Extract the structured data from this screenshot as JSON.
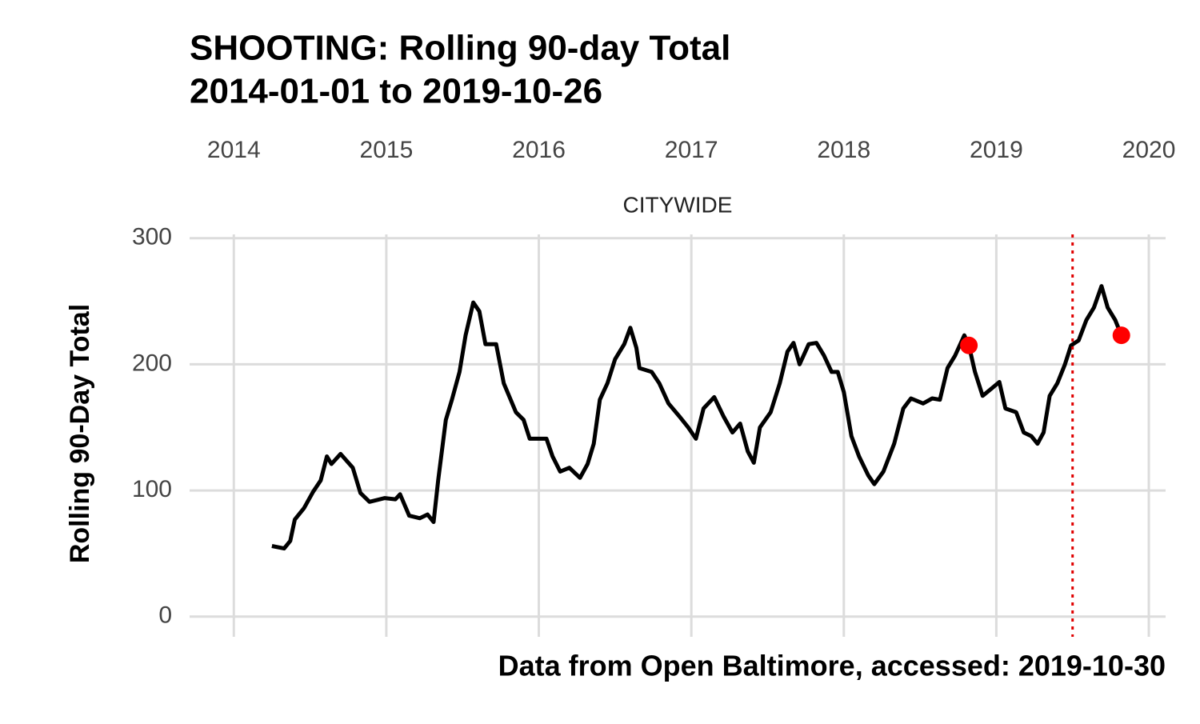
{
  "chart_data": {
    "type": "line",
    "title": "SHOOTING: Rolling 90-day Total",
    "subtitle": "2014-01-01 to 2019-10-26",
    "facet_label": "CITYWIDE",
    "y_label": "Rolling 90-Day Total",
    "caption": "Data from Open Baltimore, accessed: 2019-10-30",
    "x": [
      2014.25,
      2014.33,
      2014.37,
      2014.4,
      2014.46,
      2014.52,
      2014.57,
      2014.61,
      2014.64,
      2014.7,
      2014.78,
      2014.83,
      2014.89,
      2014.99,
      2015.06,
      2015.09,
      2015.15,
      2015.22,
      2015.27,
      2015.31,
      2015.34,
      2015.39,
      2015.43,
      2015.48,
      2015.52,
      2015.57,
      2015.61,
      2015.65,
      2015.72,
      2015.77,
      2015.85,
      2015.9,
      2015.94,
      2016.01,
      2016.05,
      2016.09,
      2016.14,
      2016.2,
      2016.27,
      2016.32,
      2016.36,
      2016.4,
      2016.45,
      2016.5,
      2016.56,
      2016.6,
      2016.64,
      2016.66,
      2016.74,
      2016.79,
      2016.85,
      2016.92,
      2016.98,
      2017.03,
      2017.08,
      2017.15,
      2017.21,
      2017.27,
      2017.32,
      2017.37,
      2017.41,
      2017.45,
      2017.52,
      2017.58,
      2017.63,
      2017.67,
      2017.71,
      2017.77,
      2017.82,
      2017.87,
      2017.92,
      2017.96,
      2018.0,
      2018.05,
      2018.1,
      2018.16,
      2018.2,
      2018.26,
      2018.33,
      2018.39,
      2018.44,
      2018.52,
      2018.58,
      2018.63,
      2018.68,
      2018.73,
      2018.79,
      2018.82,
      2018.86,
      2018.91,
      2018.97,
      2019.02,
      2019.06,
      2019.13,
      2019.18,
      2019.23,
      2019.27,
      2019.31,
      2019.35,
      2019.4,
      2019.45,
      2019.49,
      2019.54,
      2019.59,
      2019.64,
      2019.69,
      2019.73,
      2019.78,
      2019.82
    ],
    "series": [
      {
        "color": "#000000",
        "values": [
          56,
          54,
          60,
          77,
          86,
          99,
          108,
          127,
          121,
          129,
          118,
          98,
          91,
          94,
          93,
          97,
          80,
          78,
          81,
          75,
          108,
          156,
          172,
          194,
          223,
          249,
          242,
          216,
          216,
          185,
          162,
          156,
          141,
          141,
          141,
          127,
          115,
          118,
          110,
          121,
          137,
          172,
          185,
          204,
          216,
          229,
          213,
          197,
          194,
          185,
          169,
          159,
          150,
          141,
          165,
          174,
          159,
          146,
          153,
          131,
          122,
          150,
          162,
          185,
          210,
          217,
          200,
          216,
          217,
          207,
          194,
          194,
          178,
          143,
          127,
          112,
          105,
          115,
          137,
          165,
          173,
          169,
          173,
          172,
          197,
          207,
          223,
          215,
          194,
          175,
          181,
          186,
          165,
          162,
          146,
          143,
          137,
          146,
          175,
          185,
          200,
          215,
          219,
          235,
          245,
          262,
          245,
          235,
          223
        ]
      }
    ],
    "highlights": {
      "color": "#ff0000",
      "x": [
        2018.82,
        2019.82
      ],
      "values": [
        215,
        223
      ]
    },
    "vline": {
      "x": 2019.5,
      "color": "#e00000"
    },
    "xlim": [
      2013.71,
      2020.11
    ],
    "xticks": [
      2014,
      2015,
      2016,
      2017,
      2018,
      2019,
      2020
    ],
    "ylim": [
      -16,
      303
    ],
    "yticks": [
      0,
      100,
      200,
      300
    ],
    "grid": true
  }
}
